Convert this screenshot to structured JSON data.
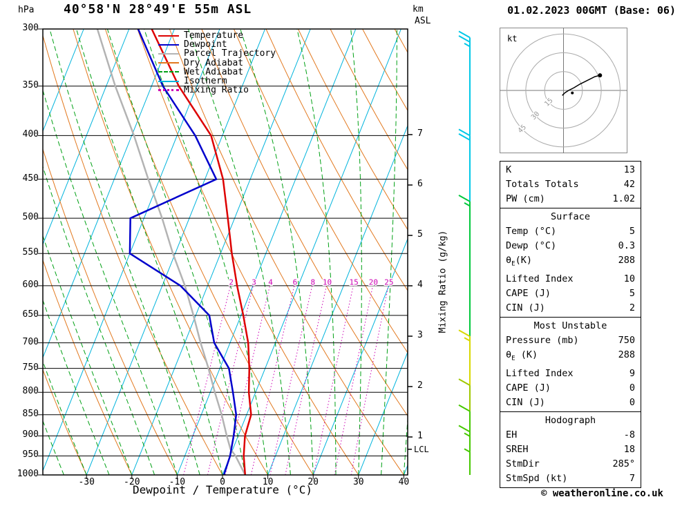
{
  "header": {
    "pressure_unit": "hPa",
    "station": "40°58'N 28°49'E 55m ASL",
    "km": "km",
    "asl": "ASL",
    "datetime": "01.02.2023 00GMT (Base: 06)"
  },
  "footer": {
    "xaxis_title": "Dewpoint / Temperature (°C)",
    "copyright": "© weatheronline.co.uk"
  },
  "axes": {
    "pressure_ticks": [
      300,
      350,
      400,
      450,
      500,
      550,
      600,
      650,
      700,
      750,
      800,
      850,
      900,
      950,
      1000
    ],
    "temp_ticks": [
      -30,
      -20,
      -10,
      0,
      10,
      20,
      30,
      40
    ],
    "km_ticks": [
      1,
      2,
      3,
      4,
      5,
      6,
      7
    ],
    "lcl_label": "LCL",
    "mixing_axis_title": "Mixing Ratio (g/kg)"
  },
  "legend": [
    {
      "label": "Temperature",
      "color": "#dd0000",
      "style": "solid"
    },
    {
      "label": "Dewpoint",
      "color": "#0000cc",
      "style": "solid"
    },
    {
      "label": "Parcel Trajectory",
      "color": "#b3b3b3",
      "style": "solid"
    },
    {
      "label": "Dry Adiabat",
      "color": "#e2781e",
      "style": "solid"
    },
    {
      "label": "Wet Adiabat",
      "color": "#00a014",
      "style": "dashed"
    },
    {
      "label": "Isotherm",
      "color": "#00b4dc",
      "style": "solid"
    },
    {
      "label": "Mixing Ratio",
      "color": "#cc00b4",
      "style": "dotted"
    }
  ],
  "colors": {
    "temperature": "#dd0000",
    "dewpoint": "#0000cc",
    "parcel": "#b3b3b3",
    "dry_adiabat": "#e2781e",
    "wet_adiabat": "#00a014",
    "isotherm": "#00b4dc",
    "mixing_ratio": "#cc00b4",
    "grid": "#000000"
  },
  "chart_data": {
    "type": "line",
    "subtype": "skew-t-log-p-sounding",
    "pressure_axis_hpa": [
      300,
      1000
    ],
    "temp_axis_c": [
      -30,
      40
    ],
    "temperature_profile": [
      [
        1000,
        5
      ],
      [
        950,
        3
      ],
      [
        900,
        1.5
      ],
      [
        850,
        1
      ],
      [
        800,
        -1.5
      ],
      [
        750,
        -3.5
      ],
      [
        700,
        -6
      ],
      [
        650,
        -9.5
      ],
      [
        600,
        -13.5
      ],
      [
        550,
        -17.5
      ],
      [
        500,
        -21.5
      ],
      [
        450,
        -26
      ],
      [
        400,
        -32.5
      ],
      [
        350,
        -44
      ],
      [
        300,
        -55
      ]
    ],
    "dewpoint_profile": [
      [
        1000,
        0.3
      ],
      [
        950,
        0
      ],
      [
        900,
        -1
      ],
      [
        850,
        -2.3
      ],
      [
        800,
        -5
      ],
      [
        750,
        -8
      ],
      [
        700,
        -13.5
      ],
      [
        650,
        -17
      ],
      [
        600,
        -26
      ],
      [
        550,
        -40
      ],
      [
        500,
        -43
      ],
      [
        450,
        -27.5
      ],
      [
        400,
        -36
      ],
      [
        350,
        -47.5
      ],
      [
        300,
        -58
      ]
    ],
    "parcel_profile": [
      [
        1000,
        5
      ],
      [
        950,
        1.2
      ],
      [
        933,
        -0.5
      ],
      [
        900,
        -2.5
      ],
      [
        850,
        -5.5
      ],
      [
        800,
        -9
      ],
      [
        750,
        -12.5
      ],
      [
        700,
        -16.5
      ],
      [
        650,
        -20.5
      ],
      [
        600,
        -25
      ],
      [
        550,
        -30.5
      ],
      [
        500,
        -36
      ],
      [
        450,
        -42.5
      ],
      [
        400,
        -49.5
      ],
      [
        350,
        -58
      ],
      [
        300,
        -67
      ]
    ],
    "isotherms_c": {
      "min": -120,
      "max": 40,
      "step": 10
    },
    "dry_adiabats_c": {
      "min": -60,
      "max": 130,
      "step": 10
    },
    "wet_adiabats_c": {
      "min": -40,
      "max": 45,
      "step": 5
    },
    "mixing_ratio_lines_gkg": [
      2,
      3,
      4,
      6,
      8,
      10,
      15,
      20,
      25
    ],
    "lcl_pressure_hpa": 933,
    "wind_barbs": [
      {
        "pressure": 307,
        "color": "#00c8e8",
        "ticks": [
          "full",
          "full",
          "half"
        ]
      },
      {
        "pressure": 400,
        "color": "#00c8e8",
        "ticks": [
          "full",
          "full"
        ]
      },
      {
        "pressure": 478,
        "color": "#00c83c",
        "ticks": [
          "full",
          "half"
        ]
      },
      {
        "pressure": 688,
        "color": "#d8d800",
        "ticks": [
          "full",
          "half"
        ]
      },
      {
        "pressure": 785,
        "color": "#a0c800",
        "ticks": [
          "full"
        ]
      },
      {
        "pressure": 842,
        "color": "#46c800",
        "ticks": [
          "full"
        ]
      },
      {
        "pressure": 890,
        "color": "#46c800",
        "ticks": [
          "full",
          "half"
        ]
      },
      {
        "pressure": 940,
        "color": "#46c800",
        "ticks": [
          "half"
        ]
      }
    ],
    "hodograph": {
      "unit": "kt",
      "rings_kt": [
        15,
        30,
        45
      ],
      "trace_uv_kt": [
        [
          -1,
          -4
        ],
        [
          1,
          -2
        ],
        [
          4,
          0
        ],
        [
          8,
          2
        ],
        [
          13,
          5
        ],
        [
          19,
          8
        ],
        [
          25,
          11
        ],
        [
          29,
          12
        ]
      ],
      "end_marker_uv_kt": [
        29,
        12
      ],
      "storm_motion_uv_kt": [
        7,
        -2
      ]
    }
  },
  "panels": [
    {
      "rows": [
        {
          "label": "K",
          "value": "13"
        },
        {
          "label": "Totals Totals",
          "value": "42"
        },
        {
          "label": "PW (cm)",
          "value": "1.02"
        }
      ]
    },
    {
      "header": "Surface",
      "rows": [
        {
          "label": "Temp (°C)",
          "value": "5"
        },
        {
          "label": "Dewp (°C)",
          "value": "0.3"
        },
        {
          "label_pre": "θ",
          "label_sub": "E",
          "label_post": "(K)",
          "value": "288"
        },
        {
          "label": "Lifted Index",
          "value": "10"
        },
        {
          "label": "CAPE (J)",
          "value": "5"
        },
        {
          "label": "CIN (J)",
          "value": "2"
        }
      ]
    },
    {
      "header": "Most Unstable",
      "rows": [
        {
          "label": "Pressure (mb)",
          "value": "750"
        },
        {
          "label_pre": "θ",
          "label_sub": "E",
          "label_post": " (K)",
          "value": "288"
        },
        {
          "label": "Lifted Index",
          "value": "9"
        },
        {
          "label": "CAPE (J)",
          "value": "0"
        },
        {
          "label": "CIN (J)",
          "value": "0"
        }
      ]
    },
    {
      "header": "Hodograph",
      "rows": [
        {
          "label": "EH",
          "value": "-8"
        },
        {
          "label": "SREH",
          "value": "18"
        },
        {
          "label": "StmDir",
          "value": "285°"
        },
        {
          "label": "StmSpd (kt)",
          "value": "7"
        }
      ]
    }
  ]
}
